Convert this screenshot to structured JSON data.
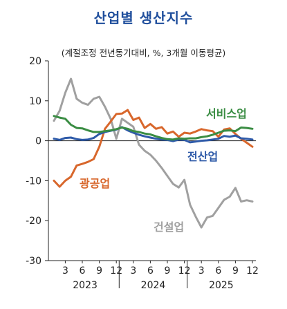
{
  "title": "산업별 생산지수",
  "subtitle": "(계절조정 전년동기대비, %, 3개월 이동평균)",
  "colors": {
    "services": "#3a8d43",
    "total": "#2e5aa8",
    "mining": "#d8672c",
    "construction": "#a0a0a0"
  },
  "chart_data": {
    "type": "line",
    "ylim": [
      -30,
      20
    ],
    "yticks": [
      "-30",
      "-20",
      "-10",
      "0",
      "10",
      "20"
    ],
    "x_tick_labels": [
      "3",
      "6",
      "9",
      "12",
      "3",
      "6",
      "9",
      "12",
      "3",
      "6",
      "9",
      "12"
    ],
    "year_labels": [
      "2023",
      "2024",
      "2025"
    ],
    "x": [
      "2023-01",
      "2023-02",
      "2023-03",
      "2023-04",
      "2023-05",
      "2023-06",
      "2023-07",
      "2023-08",
      "2023-09",
      "2023-10",
      "2023-11",
      "2023-12",
      "2024-01",
      "2024-02",
      "2024-03",
      "2024-04",
      "2024-05",
      "2024-06",
      "2024-07",
      "2024-08",
      "2024-09",
      "2024-10",
      "2024-11",
      "2024-12",
      "2025-01",
      "2025-02",
      "2025-03",
      "2025-04",
      "2025-05",
      "2025-06",
      "2025-07",
      "2025-08",
      "2025-09",
      "2025-10",
      "2025-11",
      "2025-12"
    ],
    "series": [
      {
        "key": "services",
        "name": "서비스업",
        "values": [
          6.2,
          5.8,
          5.5,
          4.0,
          3.2,
          3.1,
          2.6,
          2.2,
          2.2,
          2.4,
          2.6,
          2.9,
          3.3,
          3.0,
          2.4,
          2.2,
          1.8,
          1.6,
          1.1,
          0.7,
          0.4,
          0.3,
          0.6,
          0.5,
          0.6,
          0.6,
          0.9,
          1.1,
          1.5,
          2.0,
          2.5,
          2.6,
          2.4,
          3.3,
          3.2,
          3.0
        ]
      },
      {
        "key": "total",
        "name": "전산업",
        "values": [
          0.5,
          0.2,
          0.7,
          0.8,
          0.4,
          0.2,
          0.3,
          0.7,
          1.7,
          2.2,
          2.5,
          2.8,
          3.4,
          2.6,
          2.0,
          1.5,
          1.1,
          0.8,
          0.5,
          0.3,
          0.2,
          -0.1,
          0.3,
          0.2,
          -0.4,
          -0.2,
          0.0,
          0.1,
          0.3,
          0.5,
          1.2,
          1.0,
          1.3,
          0.6,
          0.5,
          0.3
        ]
      },
      {
        "key": "mining",
        "name": "광공업",
        "values": [
          -10.0,
          -11.5,
          -10.0,
          -9.0,
          -6.2,
          -5.8,
          -5.3,
          -4.6,
          -1.5,
          3.0,
          4.8,
          6.7,
          6.8,
          7.7,
          5.2,
          5.8,
          3.2,
          4.2,
          3.0,
          3.4,
          1.8,
          2.3,
          1.0,
          2.0,
          1.8,
          2.3,
          2.9,
          2.6,
          2.4,
          1.0,
          2.8,
          3.1,
          1.7,
          0.5,
          -0.5,
          -1.5
        ]
      },
      {
        "key": "construction",
        "name": "건설업",
        "values": [
          5.0,
          7.5,
          12.0,
          15.5,
          10.5,
          9.5,
          9.0,
          10.5,
          11.0,
          8.5,
          5.5,
          0.5,
          5.5,
          4.5,
          3.5,
          -1.0,
          -2.5,
          -3.5,
          -5.0,
          -6.8,
          -8.8,
          -10.8,
          -11.7,
          -9.8,
          -16.0,
          -19.0,
          -21.7,
          -19.2,
          -18.8,
          -16.8,
          -14.8,
          -14.0,
          -11.8,
          -15.2,
          -14.9,
          -15.2
        ]
      }
    ]
  },
  "labels": {
    "services": "서비스업",
    "total": "전산업",
    "mining": "광공업",
    "construction": "건설업"
  }
}
